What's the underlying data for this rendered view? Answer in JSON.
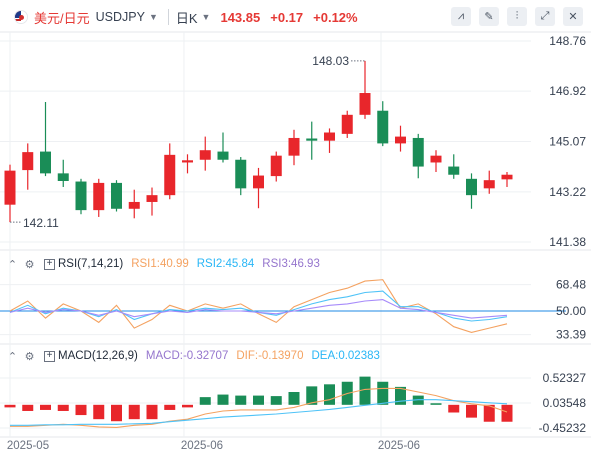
{
  "header": {
    "name": "美元/日元",
    "symbol": "USDJPY",
    "interval": "日K",
    "price": "143.85",
    "change": "+0.17",
    "change_pct": "+0.12%"
  },
  "tools": [
    {
      "name": "indicator-icon",
      "glyph": "⩘"
    },
    {
      "name": "draw-icon",
      "glyph": "✎"
    },
    {
      "name": "chart-type-icon",
      "glyph": "▦"
    },
    {
      "name": "candle-style-icon",
      "glyph": "⫶"
    },
    {
      "name": "fullscreen-icon",
      "glyph": "⤢"
    },
    {
      "name": "close-icon",
      "glyph": "✕"
    }
  ],
  "colors": {
    "up": "#e8262b",
    "down": "#1a8d57",
    "rsi1": "#f4a261",
    "rsi2": "#4fc3f7",
    "rsi3": "#a78bfa",
    "macd": "#a78bfa",
    "dif": "#f4a261",
    "dea": "#4fc3f7",
    "ref": "#1e88e5"
  },
  "chart_data": [
    {
      "type": "candlestick",
      "title": "USDJPY",
      "x_ticks": [
        "2025-05",
        "2025-06",
        "2025-06"
      ],
      "y_ticks": [
        148.76,
        146.92,
        145.07,
        143.22,
        141.38
      ],
      "annotations": {
        "max": "148.03",
        "min": "142.11"
      },
      "candles": [
        {
          "o": 142.75,
          "h": 144.22,
          "l": 142.11,
          "c": 144.0
        },
        {
          "o": 144.02,
          "h": 145.0,
          "l": 143.3,
          "c": 144.68
        },
        {
          "o": 144.7,
          "h": 146.52,
          "l": 143.8,
          "c": 143.9
        },
        {
          "o": 143.9,
          "h": 144.4,
          "l": 143.4,
          "c": 143.62
        },
        {
          "o": 143.6,
          "h": 143.7,
          "l": 142.4,
          "c": 142.55
        },
        {
          "o": 142.55,
          "h": 143.7,
          "l": 142.3,
          "c": 143.55
        },
        {
          "o": 143.55,
          "h": 143.65,
          "l": 142.5,
          "c": 142.6
        },
        {
          "o": 142.6,
          "h": 143.3,
          "l": 142.25,
          "c": 142.85
        },
        {
          "o": 142.85,
          "h": 143.38,
          "l": 142.35,
          "c": 143.1
        },
        {
          "o": 143.1,
          "h": 145.0,
          "l": 142.95,
          "c": 144.58
        },
        {
          "o": 144.3,
          "h": 144.6,
          "l": 143.9,
          "c": 144.38
        },
        {
          "o": 144.4,
          "h": 145.25,
          "l": 144.0,
          "c": 144.75
        },
        {
          "o": 144.7,
          "h": 145.4,
          "l": 144.3,
          "c": 144.4
        },
        {
          "o": 144.4,
          "h": 144.5,
          "l": 143.1,
          "c": 143.35
        },
        {
          "o": 143.35,
          "h": 144.1,
          "l": 142.62,
          "c": 143.82
        },
        {
          "o": 143.8,
          "h": 144.7,
          "l": 143.6,
          "c": 144.55
        },
        {
          "o": 144.55,
          "h": 145.5,
          "l": 144.2,
          "c": 145.2
        },
        {
          "o": 145.18,
          "h": 145.8,
          "l": 144.4,
          "c": 145.1
        },
        {
          "o": 145.1,
          "h": 145.55,
          "l": 144.65,
          "c": 145.4
        },
        {
          "o": 145.35,
          "h": 146.2,
          "l": 145.2,
          "c": 146.05
        },
        {
          "o": 146.05,
          "h": 148.03,
          "l": 145.9,
          "c": 146.85
        },
        {
          "o": 146.2,
          "h": 146.55,
          "l": 144.9,
          "c": 145.0
        },
        {
          "o": 145.0,
          "h": 145.65,
          "l": 144.7,
          "c": 145.25
        },
        {
          "o": 145.2,
          "h": 145.35,
          "l": 143.72,
          "c": 144.15
        },
        {
          "o": 144.3,
          "h": 144.75,
          "l": 143.95,
          "c": 144.55
        },
        {
          "o": 144.15,
          "h": 144.6,
          "l": 143.7,
          "c": 143.85
        },
        {
          "o": 143.7,
          "h": 143.9,
          "l": 142.6,
          "c": 143.1
        },
        {
          "o": 143.35,
          "h": 144.0,
          "l": 143.15,
          "c": 143.65
        },
        {
          "o": 143.68,
          "h": 143.95,
          "l": 143.4,
          "c": 143.85
        }
      ]
    },
    {
      "type": "line",
      "title": "RSI(7,14,21)",
      "ylim": [
        0,
        100
      ],
      "y_ticks": [
        68.48,
        50.0,
        33.39
      ],
      "reference_line": 50.0,
      "series": [
        {
          "name": "RSI1",
          "label": "RSI1:40.99",
          "values": [
            50,
            57,
            45,
            55,
            50,
            42,
            54,
            38,
            44,
            54,
            50,
            55,
            52,
            55,
            48,
            42,
            53,
            58,
            63,
            66,
            71,
            72,
            52,
            55,
            48,
            39,
            35,
            38,
            41
          ]
        },
        {
          "name": "RSI2",
          "label": "RSI2:45.84",
          "values": [
            49,
            54,
            48,
            52,
            50,
            46,
            51,
            44,
            48,
            51,
            50,
            52,
            51,
            52,
            49,
            47,
            51,
            55,
            58,
            60,
            63,
            64,
            53,
            53,
            49,
            45,
            43,
            44,
            46
          ]
        },
        {
          "name": "RSI3",
          "label": "RSI3:46.93",
          "values": [
            49,
            52,
            49,
            51,
            50,
            47,
            50,
            46,
            48,
            50,
            49,
            51,
            50,
            50,
            49,
            48,
            50,
            52,
            54,
            55,
            57,
            58,
            52,
            51,
            49,
            47,
            45,
            46,
            47
          ]
        }
      ]
    },
    {
      "type": "bar",
      "title": "MACD(12,26,9)",
      "y_ticks": [
        0.52327,
        0.03548,
        -0.45232
      ],
      "series": [
        {
          "name": "MACD",
          "label": "MACD:-0.32707",
          "values": [
            -0.05,
            -0.12,
            -0.1,
            -0.12,
            -0.2,
            -0.28,
            -0.32,
            -0.28,
            -0.28,
            -0.1,
            -0.05,
            0.15,
            0.2,
            0.18,
            0.18,
            0.17,
            0.25,
            0.36,
            0.4,
            0.45,
            0.55,
            0.45,
            0.35,
            0.18,
            0.03,
            -0.15,
            -0.25,
            -0.33,
            -0.33
          ]
        },
        {
          "name": "DIF",
          "label": "DIF:-0.13970",
          "values": [
            -0.42,
            -0.42,
            -0.4,
            -0.38,
            -0.4,
            -0.43,
            -0.44,
            -0.4,
            -0.38,
            -0.32,
            -0.28,
            -0.18,
            -0.12,
            -0.1,
            -0.1,
            -0.1,
            -0.05,
            0.04,
            0.1,
            0.22,
            0.3,
            0.32,
            0.32,
            0.25,
            0.18,
            0.08,
            0.02,
            -0.02,
            -0.14
          ]
        },
        {
          "name": "DEA",
          "label": "DEA:0.02383",
          "values": [
            -0.4,
            -0.4,
            -0.39,
            -0.39,
            -0.38,
            -0.38,
            -0.38,
            -0.37,
            -0.36,
            -0.33,
            -0.3,
            -0.27,
            -0.24,
            -0.22,
            -0.2,
            -0.18,
            -0.15,
            -0.12,
            -0.09,
            -0.05,
            -0.01,
            0.03,
            0.07,
            0.1,
            0.1,
            0.08,
            0.06,
            0.04,
            0.02
          ]
        }
      ]
    }
  ]
}
